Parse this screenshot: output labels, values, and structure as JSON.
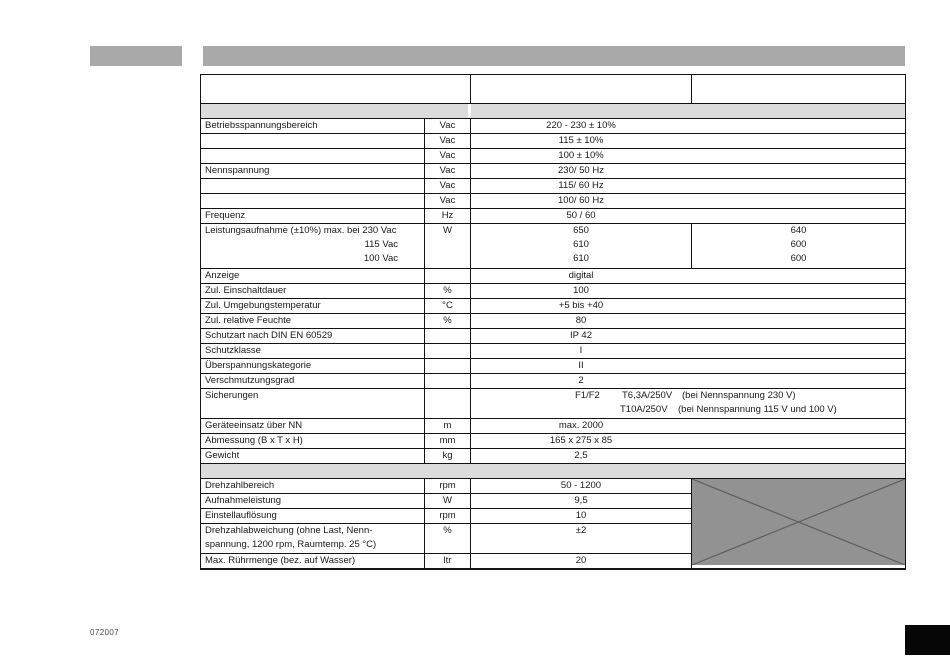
{
  "colors": {
    "header_bar": "#a9a9a9",
    "section_band": "#dcdcdc",
    "crossed_box": "#929292",
    "cross_line": "#5f5f5f"
  },
  "footer": {
    "code": "072007"
  },
  "spec_table": {
    "rows": [
      {
        "kind": "header"
      },
      {
        "kind": "band",
        "split": true
      },
      {
        "kind": "simple",
        "label": "Betriebsspannungsbereich",
        "unit": "Vac",
        "value": "220 - 230 ± 10%"
      },
      {
        "kind": "simple",
        "label": "",
        "unit": "Vac",
        "value": "115 ± 10%"
      },
      {
        "kind": "simple",
        "label": "",
        "unit": "Vac",
        "value": "100 ± 10%"
      },
      {
        "kind": "simple",
        "label": "Nennspannung",
        "unit": "Vac",
        "value": "230/ 50 Hz"
      },
      {
        "kind": "simple",
        "label": "",
        "unit": "Vac",
        "value": "115/ 60 Hz"
      },
      {
        "kind": "simple",
        "label": "",
        "unit": "Vac",
        "value": "100/ 60 Hz"
      },
      {
        "kind": "simple",
        "label": "Frequenz",
        "unit": "Hz",
        "value": "50 / 60"
      },
      {
        "kind": "power",
        "label_first": "Leistungsaufnahme (±10%) max. bei 230 Vac",
        "label_rest": [
          "115 Vac",
          "100 Vac"
        ],
        "unit": "W",
        "lines": [
          {
            "left": "650",
            "right": "640"
          },
          {
            "left": "610",
            "right": "600"
          },
          {
            "left": "610",
            "right": "600"
          }
        ]
      },
      {
        "kind": "simple",
        "label": "Anzeige",
        "unit": "",
        "value": "digital"
      },
      {
        "kind": "simple",
        "label": "Zul. Einschaltdauer",
        "unit": "%",
        "value": "100"
      },
      {
        "kind": "simple",
        "label": "Zul. Umgebungstemperatur",
        "unit": "°C",
        "value": "+5 bis +40"
      },
      {
        "kind": "simple",
        "label": "Zul. relative Feuchte",
        "unit": "%",
        "value": "80"
      },
      {
        "kind": "simple",
        "label": "Schutzart nach DIN EN 60529",
        "unit": "",
        "value": "IP 42"
      },
      {
        "kind": "simple",
        "label": "Schutzklasse",
        "unit": "",
        "value": "I"
      },
      {
        "kind": "simple",
        "label": "Überspannungskategorie",
        "unit": "",
        "value": "II"
      },
      {
        "kind": "simple",
        "label": "Verschmutzungsgrad",
        "unit": "",
        "value": "2"
      },
      {
        "kind": "fuses",
        "label": "Sicherungen",
        "line1": [
          "F1/F2",
          "T6,3A/250V",
          "(bei Nennspannung 230 V)"
        ],
        "line2": [
          "T10A/250V",
          "(bei Nennspannung 115 V und 100 V)"
        ]
      },
      {
        "kind": "simple",
        "label": "Geräteeinsatz über NN",
        "unit": "m",
        "value": "max. 2000"
      },
      {
        "kind": "simple",
        "label": "Abmessung (B x T x H)",
        "unit": "mm",
        "value": "165 x 275 x 85"
      },
      {
        "kind": "simple",
        "label": "Gewicht",
        "unit": "kg",
        "value": "2,5"
      },
      {
        "kind": "band",
        "split": false
      },
      {
        "kind": "simple",
        "divider": true,
        "label": "Drehzahlbereich",
        "unit": "rpm",
        "value": "50 - 1200"
      },
      {
        "kind": "simple",
        "divider": true,
        "label": "Aufnahmeleistung",
        "unit": "W",
        "value": "9,5"
      },
      {
        "kind": "simple",
        "divider": true,
        "label": "Einstellauflösung",
        "unit": "rpm",
        "value": "10"
      },
      {
        "kind": "wrap",
        "divider": true,
        "label_lines": [
          "Drehzahlabweichung (ohne Last, Nenn-",
          "spannung, 1200 rpm, Raumtemp. 25 °C)"
        ],
        "unit": "%",
        "value": "±2"
      },
      {
        "kind": "simple",
        "divider": true,
        "label": "Max. Rührmenge (bez. auf Wasser)",
        "unit": "ltr",
        "value": "20"
      }
    ]
  }
}
